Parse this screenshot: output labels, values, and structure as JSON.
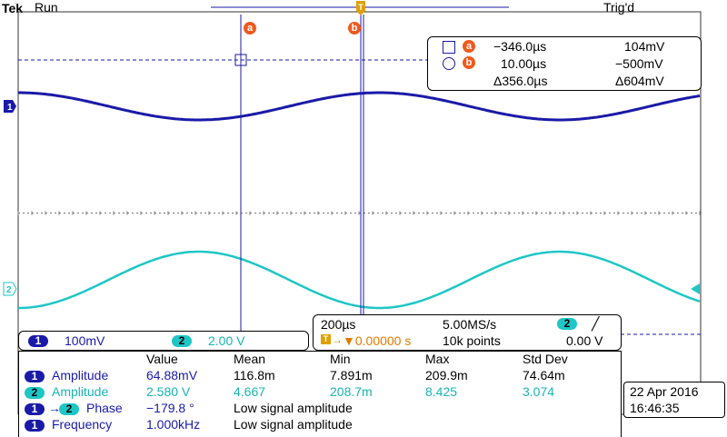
{
  "header": {
    "brand": "Tek",
    "run_state": "Run",
    "trigger_state": "Trig'd"
  },
  "colors": {
    "ch1": "#1a1aa8",
    "ch2": "#1ec6c6",
    "cursor": "#1a1aa8",
    "cursor_badge": "#f05a1e",
    "trigger": "#e0a000"
  },
  "cursors": {
    "a": {
      "label": "a",
      "time": "−346.0µs",
      "volt": "104mV"
    },
    "b": {
      "label": "b",
      "time": "10.00µs",
      "volt": "−500mV"
    },
    "delta": {
      "time": "Δ356.0µs",
      "volt": "Δ604mV"
    }
  },
  "channels": {
    "ch1": {
      "num": "1",
      "scale": "100mV"
    },
    "ch2": {
      "num": "2",
      "scale": "2.00 V"
    }
  },
  "timebase": {
    "time_div": "200µs",
    "sample_rate": "5.00MS/s",
    "trig_pos": "▼0.00000 s",
    "record": "10k points",
    "trig_source": "2",
    "trig_level": "0.00 V"
  },
  "measurements": {
    "headers": [
      "Value",
      "Mean",
      "Min",
      "Max",
      "Std Dev"
    ],
    "rows": [
      {
        "ch": "1",
        "ch2": "",
        "label": "Amplitude",
        "value": "64.88mV",
        "mean": "116.8m",
        "min": "7.891m",
        "max": "209.9m",
        "std": "74.64m",
        "color": "blue"
      },
      {
        "ch": "2",
        "ch2": "",
        "label": "Amplitude",
        "value": "2.580 V",
        "mean": "4.667",
        "min": "208.7m",
        "max": "8.425",
        "std": "3.074",
        "color": "cyan"
      },
      {
        "ch": "1",
        "ch2": "2",
        "label": "Phase",
        "value": "−179.8 °",
        "mean": "Low signal amplitude",
        "min": "",
        "max": "",
        "std": "",
        "color": "blue"
      },
      {
        "ch": "1",
        "ch2": "",
        "label": "Frequency",
        "value": "1.000kHz",
        "mean": "Low signal amplitude",
        "min": "",
        "max": "",
        "std": "",
        "color": "blue"
      }
    ]
  },
  "datetime": {
    "date": "22 Apr  2016",
    "time": "16:46:35"
  }
}
